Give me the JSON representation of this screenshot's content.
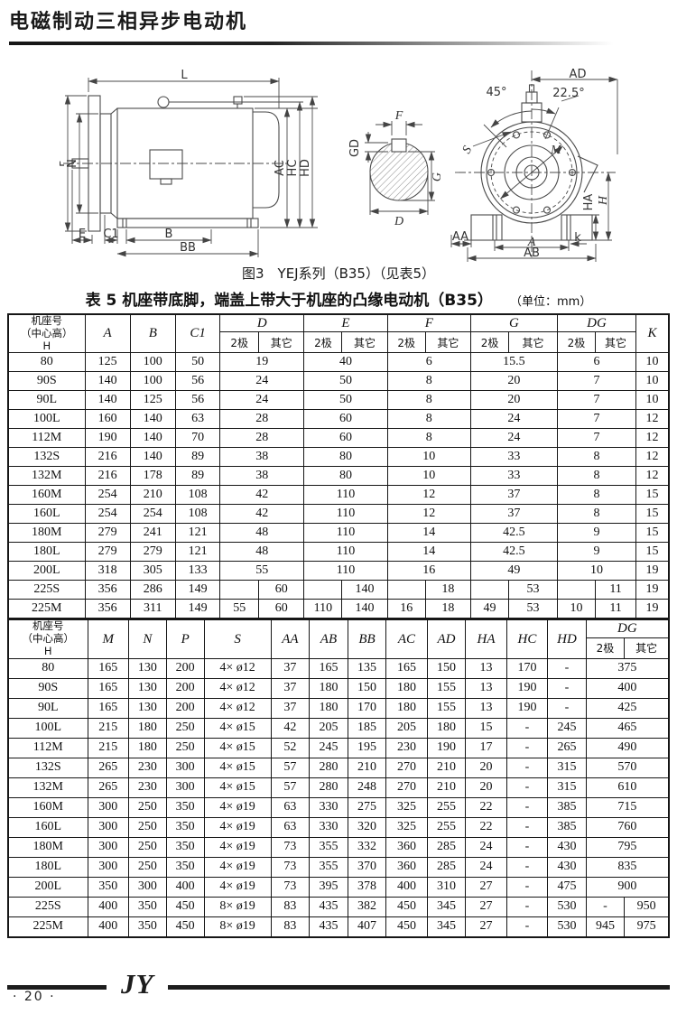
{
  "page": {
    "header_title": "电磁制动三相异步电动机",
    "figure_caption": "图3　YEJ系列（B35）（见表5）",
    "table_title": "表 5  机座带底脚，端盖上带大于机座的凸缘电动机（B35）",
    "table_unit": "（单位：mm）"
  },
  "drawings": {
    "side_view": {
      "L": "L",
      "P": "P",
      "N": "N",
      "E": "E",
      "C1": "C1",
      "B": "B",
      "BB": "BB",
      "AC": "AC",
      "HC": "HC",
      "HD": "HD"
    },
    "shaft_section": {
      "F": "F",
      "GD": "GD",
      "G": "G",
      "D": "D"
    },
    "front_view": {
      "AD": "AD",
      "angle45": "45°",
      "angle225": "22.5°",
      "S": "S",
      "M": "M",
      "HA": "HA",
      "H": "H",
      "AA": "AA",
      "A": "A",
      "k": "k",
      "AB": "AB"
    }
  },
  "table1": {
    "header": {
      "frame": "机座号\n（中心高）\nH",
      "A": "A",
      "B": "B",
      "C1": "C1",
      "D": "D",
      "E": "E",
      "F": "F",
      "G": "G",
      "DG": "DG",
      "K": "K",
      "pole2": "2极",
      "other": "其它"
    },
    "rows": [
      [
        "80",
        "125",
        "100",
        "50",
        {
          "t": "19",
          "s": 2
        },
        {
          "t": "40",
          "s": 2
        },
        {
          "t": "6",
          "s": 2
        },
        {
          "t": "15.5",
          "s": 2
        },
        {
          "t": "6",
          "s": 2
        },
        "10"
      ],
      [
        "90S",
        "140",
        "100",
        "56",
        {
          "t": "24",
          "s": 2
        },
        {
          "t": "50",
          "s": 2
        },
        {
          "t": "8",
          "s": 2
        },
        {
          "t": "20",
          "s": 2
        },
        {
          "t": "7",
          "s": 2
        },
        "10"
      ],
      [
        "90L",
        "140",
        "125",
        "56",
        {
          "t": "24",
          "s": 2
        },
        {
          "t": "50",
          "s": 2
        },
        {
          "t": "8",
          "s": 2
        },
        {
          "t": "20",
          "s": 2
        },
        {
          "t": "7",
          "s": 2
        },
        "10"
      ],
      [
        "100L",
        "160",
        "140",
        "63",
        {
          "t": "28",
          "s": 2
        },
        {
          "t": "60",
          "s": 2
        },
        {
          "t": "8",
          "s": 2
        },
        {
          "t": "24",
          "s": 2
        },
        {
          "t": "7",
          "s": 2
        },
        "12"
      ],
      [
        "112M",
        "190",
        "140",
        "70",
        {
          "t": "28",
          "s": 2
        },
        {
          "t": "60",
          "s": 2
        },
        {
          "t": "8",
          "s": 2
        },
        {
          "t": "24",
          "s": 2
        },
        {
          "t": "7",
          "s": 2
        },
        "12"
      ],
      [
        "132S",
        "216",
        "140",
        "89",
        {
          "t": "38",
          "s": 2
        },
        {
          "t": "80",
          "s": 2
        },
        {
          "t": "10",
          "s": 2
        },
        {
          "t": "33",
          "s": 2
        },
        {
          "t": "8",
          "s": 2
        },
        "12"
      ],
      [
        "132M",
        "216",
        "178",
        "89",
        {
          "t": "38",
          "s": 2
        },
        {
          "t": "80",
          "s": 2
        },
        {
          "t": "10",
          "s": 2
        },
        {
          "t": "33",
          "s": 2
        },
        {
          "t": "8",
          "s": 2
        },
        "12"
      ],
      [
        "160M",
        "254",
        "210",
        "108",
        {
          "t": "42",
          "s": 2
        },
        {
          "t": "110",
          "s": 2
        },
        {
          "t": "12",
          "s": 2
        },
        {
          "t": "37",
          "s": 2
        },
        {
          "t": "8",
          "s": 2
        },
        "15"
      ],
      [
        "160L",
        "254",
        "254",
        "108",
        {
          "t": "42",
          "s": 2
        },
        {
          "t": "110",
          "s": 2
        },
        {
          "t": "12",
          "s": 2
        },
        {
          "t": "37",
          "s": 2
        },
        {
          "t": "8",
          "s": 2
        },
        "15"
      ],
      [
        "180M",
        "279",
        "241",
        "121",
        {
          "t": "48",
          "s": 2
        },
        {
          "t": "110",
          "s": 2
        },
        {
          "t": "14",
          "s": 2
        },
        {
          "t": "42.5",
          "s": 2
        },
        {
          "t": "9",
          "s": 2
        },
        "15"
      ],
      [
        "180L",
        "279",
        "279",
        "121",
        {
          "t": "48",
          "s": 2
        },
        {
          "t": "110",
          "s": 2
        },
        {
          "t": "14",
          "s": 2
        },
        {
          "t": "42.5",
          "s": 2
        },
        {
          "t": "9",
          "s": 2
        },
        "15"
      ],
      [
        "200L",
        "318",
        "305",
        "133",
        {
          "t": "55",
          "s": 2
        },
        {
          "t": "110",
          "s": 2
        },
        {
          "t": "16",
          "s": 2
        },
        {
          "t": "49",
          "s": 2
        },
        {
          "t": "10",
          "s": 2
        },
        "19"
      ],
      [
        "225S",
        "356",
        "286",
        "149",
        "",
        "60",
        "",
        "140",
        "",
        "18",
        "",
        "53",
        "",
        "11",
        "19"
      ],
      [
        "225M",
        "356",
        "311",
        "149",
        "55",
        "60",
        "110",
        "140",
        "16",
        "18",
        "49",
        "53",
        "10",
        "11",
        "19"
      ]
    ]
  },
  "table2": {
    "header": {
      "frame": "机座号\n（中心高）\nH",
      "M": "M",
      "N": "N",
      "P": "P",
      "S": "S",
      "AA": "AA",
      "AB": "AB",
      "BB": "BB",
      "AC": "AC",
      "AD": "AD",
      "HA": "HA",
      "HC": "HC",
      "HD": "HD",
      "DG": "DG",
      "pole2": "2极",
      "other": "其它"
    },
    "rows": [
      [
        "80",
        "165",
        "130",
        "200",
        "4× ø12",
        "37",
        "165",
        "135",
        "165",
        "150",
        "13",
        "170",
        "-",
        {
          "t": "375",
          "s": 2
        }
      ],
      [
        "90S",
        "165",
        "130",
        "200",
        "4× ø12",
        "37",
        "180",
        "150",
        "180",
        "155",
        "13",
        "190",
        "-",
        {
          "t": "400",
          "s": 2
        }
      ],
      [
        "90L",
        "165",
        "130",
        "200",
        "4× ø12",
        "37",
        "180",
        "170",
        "180",
        "155",
        "13",
        "190",
        "-",
        {
          "t": "425",
          "s": 2
        }
      ],
      [
        "100L",
        "215",
        "180",
        "250",
        "4× ø15",
        "42",
        "205",
        "185",
        "205",
        "180",
        "15",
        "-",
        "245",
        {
          "t": "465",
          "s": 2
        }
      ],
      [
        "112M",
        "215",
        "180",
        "250",
        "4× ø15",
        "52",
        "245",
        "195",
        "230",
        "190",
        "17",
        "-",
        "265",
        {
          "t": "490",
          "s": 2
        }
      ],
      [
        "132S",
        "265",
        "230",
        "300",
        "4× ø15",
        "57",
        "280",
        "210",
        "270",
        "210",
        "20",
        "-",
        "315",
        {
          "t": "570",
          "s": 2
        }
      ],
      [
        "132M",
        "265",
        "230",
        "300",
        "4× ø15",
        "57",
        "280",
        "248",
        "270",
        "210",
        "20",
        "-",
        "315",
        {
          "t": "610",
          "s": 2
        }
      ],
      [
        "160M",
        "300",
        "250",
        "350",
        "4× ø19",
        "63",
        "330",
        "275",
        "325",
        "255",
        "22",
        "-",
        "385",
        {
          "t": "715",
          "s": 2
        }
      ],
      [
        "160L",
        "300",
        "250",
        "350",
        "4× ø19",
        "63",
        "330",
        "320",
        "325",
        "255",
        "22",
        "-",
        "385",
        {
          "t": "760",
          "s": 2
        }
      ],
      [
        "180M",
        "300",
        "250",
        "350",
        "4× ø19",
        "73",
        "355",
        "332",
        "360",
        "285",
        "24",
        "-",
        "430",
        {
          "t": "795",
          "s": 2
        }
      ],
      [
        "180L",
        "300",
        "250",
        "350",
        "4× ø19",
        "73",
        "355",
        "370",
        "360",
        "285",
        "24",
        "-",
        "430",
        {
          "t": "835",
          "s": 2
        }
      ],
      [
        "200L",
        "350",
        "300",
        "400",
        "4× ø19",
        "73",
        "395",
        "378",
        "400",
        "310",
        "27",
        "-",
        "475",
        {
          "t": "900",
          "s": 2
        }
      ],
      [
        "225S",
        "400",
        "350",
        "450",
        "8× ø19",
        "83",
        "435",
        "382",
        "450",
        "345",
        "27",
        "-",
        "530",
        "-",
        "950"
      ],
      [
        "225M",
        "400",
        "350",
        "450",
        "8× ø19",
        "83",
        "435",
        "407",
        "450",
        "345",
        "27",
        "-",
        "530",
        "945",
        "975"
      ]
    ]
  },
  "footer": {
    "logo": "JY",
    "page_number": "· 20 ·"
  }
}
